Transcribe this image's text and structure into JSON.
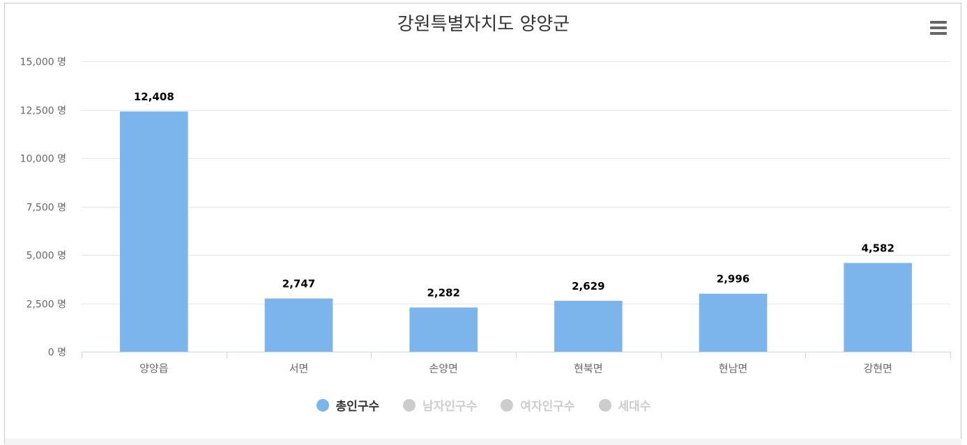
{
  "chart_data": {
    "type": "bar",
    "title": "강원특별자치도 양양군",
    "categories": [
      "양양읍",
      "서면",
      "손양면",
      "현북면",
      "현남면",
      "강현면"
    ],
    "series": [
      {
        "name": "총인구수",
        "values": [
          12408,
          2747,
          2282,
          2629,
          2996,
          4582
        ],
        "value_labels": [
          "12,408",
          "2,747",
          "2,282",
          "2,629",
          "2,996",
          "4,582"
        ],
        "color": "#7cb5ec"
      }
    ],
    "yticks": [
      0,
      2500,
      5000,
      7500,
      10000,
      12500,
      15000
    ],
    "ytick_labels": [
      "0 명",
      "2,500 명",
      "5,000 명",
      "7,500 명",
      "10,000 명",
      "12,500 명",
      "15,000 명"
    ],
    "ylim": [
      0,
      15000
    ],
    "grid": true,
    "legend_position": "bottom-center"
  },
  "legend": [
    {
      "label": "총인구수",
      "color": "#7cb5ec",
      "active": true
    },
    {
      "label": "남자인구수",
      "color": "#cccccc",
      "active": false
    },
    {
      "label": "여자인구수",
      "color": "#cccccc",
      "active": false
    },
    {
      "label": "세대수",
      "color": "#cccccc",
      "active": false
    }
  ],
  "menu": {
    "icon": "hamburger-menu-icon"
  },
  "colors": {
    "bar": "#7cb5ec",
    "grid": "#e6e6e6",
    "axis": "#ccd6eb",
    "tick_text": "#666666",
    "label_text": "#000000",
    "legend_active_text": "#333333",
    "legend_inactive_text": "#cccccc"
  }
}
